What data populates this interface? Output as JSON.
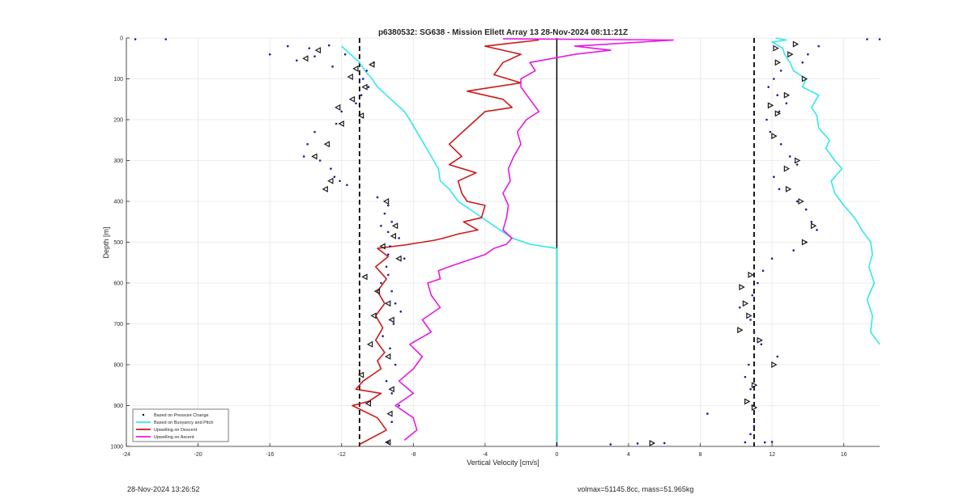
{
  "chart_data": {
    "type": "line",
    "title": "p6380532: SG638 - Mission Ellett Array 13 28-Nov-2024 08:11:21Z",
    "xlabel": "Vertical Velocity [cm/s]",
    "ylabel": "Depth [m]",
    "xlim": [
      -24,
      18
    ],
    "ylim": [
      0,
      1000
    ],
    "y_reversed": true,
    "grid": true,
    "xticks": [
      -24,
      -20,
      -16,
      -12,
      -8,
      -4,
      0,
      4,
      8,
      12,
      16
    ],
    "yticks": [
      0,
      100,
      200,
      300,
      400,
      500,
      600,
      700,
      800,
      900,
      1000
    ],
    "reference_lines": {
      "dashed_x": [
        -11,
        11
      ],
      "solid_x": [
        0
      ]
    },
    "legend": {
      "placement": "bottom-left",
      "entries": [
        {
          "label": "Based on Pressure Change",
          "color": "#000000",
          "style": "dot"
        },
        {
          "label": "Based on Buoyancy and Pitch",
          "color": "#33e8e8",
          "style": "line"
        },
        {
          "label": "Upwelling on Descent",
          "color": "#cc1a1a",
          "style": "line"
        },
        {
          "label": "Upwelling on Ascent",
          "color": "#e619e6",
          "style": "line"
        }
      ]
    },
    "series": [
      {
        "name": "Based on Buoyancy and Pitch",
        "role": "descent",
        "color": "#33e8e8",
        "x": [
          -12,
          -11.5,
          -11,
          -10.7,
          -10.3,
          -10,
          -9.5,
          -9,
          -8.5,
          -8.2,
          -7.8,
          -7.4,
          -7,
          -6.6,
          -6.5,
          -6,
          -5.5,
          -4.5,
          -3.5,
          -2.5,
          -1.5,
          -0.5,
          0,
          0,
          0
        ],
        "y": [
          20,
          40,
          60,
          80,
          100,
          120,
          140,
          160,
          180,
          200,
          230,
          260,
          290,
          320,
          350,
          370,
          400,
          430,
          460,
          490,
          505,
          512,
          515,
          700,
          990
        ]
      },
      {
        "name": "Based on Buoyancy and Pitch",
        "role": "ascent",
        "color": "#33e8e8",
        "x": [
          18,
          17.5,
          17.6,
          17.3,
          17.7,
          17.4,
          17.6,
          17.5,
          17,
          16.6,
          16,
          15.5,
          15.3,
          15.9,
          15.5,
          15,
          15.2,
          14.6,
          14.5,
          14.2,
          14.6,
          13.7,
          13.9,
          13.2,
          13,
          12.7,
          12.6,
          12,
          12.8,
          12.2
        ],
        "y": [
          750,
          720,
          680,
          640,
          600,
          560,
          530,
          500,
          470,
          440,
          410,
          380,
          350,
          320,
          300,
          270,
          250,
          220,
          190,
          170,
          140,
          120,
          100,
          80,
          60,
          40,
          25,
          10,
          5,
          0
        ]
      },
      {
        "name": "Upwelling on Descent",
        "color": "#cc1a1a",
        "x": [
          -1,
          -4,
          -2,
          -3,
          -3.5,
          -2,
          -5,
          -3,
          -2.5,
          -4,
          -4.5,
          -5,
          -5.5,
          -6,
          -5.3,
          -6,
          -4.5,
          -5.5,
          -5.3,
          -5,
          -4,
          -4.2,
          -5.2,
          -4.4,
          -5.5,
          -6.3,
          -6.8,
          -7.5,
          -8.5,
          -10,
          -9.4,
          -10.1,
          -9.5,
          -10,
          -9.6,
          -10.1,
          -9.7,
          -10.1,
          -9.6,
          -10,
          -9.8,
          -10.3,
          -10.8,
          -11.2,
          -9.8,
          -10.5,
          -11.4,
          -10,
          -9.5,
          -11
        ],
        "y": [
          5,
          20,
          40,
          60,
          90,
          110,
          130,
          150,
          170,
          180,
          200,
          220,
          240,
          260,
          290,
          310,
          330,
          350,
          380,
          400,
          410,
          440,
          450,
          470,
          480,
          490,
          495,
          500,
          507,
          515,
          535,
          560,
          590,
          620,
          650,
          680,
          710,
          740,
          770,
          790,
          810,
          825,
          840,
          860,
          870,
          890,
          900,
          930,
          960,
          995
        ]
      },
      {
        "name": "Upwelling on Ascent",
        "color": "#e619e6",
        "x": [
          -8.5,
          -7.8,
          -8,
          -9,
          -8,
          -8.8,
          -8,
          -7.5,
          -8.2,
          -7,
          -7.5,
          -6.5,
          -7,
          -7.2,
          -6.5,
          -6.6,
          -6,
          -5,
          -4,
          -3.5,
          -2.8,
          -2.5,
          -3,
          -2.8,
          -2.7,
          -3,
          -2.6,
          -2.7,
          -2.4,
          -2,
          -2.2,
          -1.7,
          -1,
          -1.5,
          -2,
          -2,
          -1.2,
          -1.5,
          1,
          3,
          1,
          6.5,
          -3
        ],
        "y": [
          985,
          960,
          930,
          900,
          870,
          840,
          810,
          780,
          750,
          720,
          690,
          660,
          630,
          600,
          590,
          570,
          560,
          545,
          530,
          515,
          505,
          490,
          470,
          440,
          410,
          380,
          350,
          320,
          290,
          260,
          230,
          200,
          180,
          150,
          120,
          100,
          80,
          60,
          40,
          30,
          20,
          5,
          2
        ]
      },
      {
        "name": "Based on Pressure Change",
        "role": "descent",
        "color": "#1a1aa6",
        "x": [
          -23.5,
          -21.8,
          -16,
          -15,
          -14.5,
          -13.8,
          -13.5,
          -12.7,
          -12.5,
          -11.8,
          -10.6,
          -10.2,
          -10.8,
          -10.5,
          -10.9,
          -11.2,
          -12,
          -12.3,
          -13.5,
          -13.9,
          -14.1,
          -13.2,
          -12.6,
          -12.4,
          -12.1,
          -11.7,
          -10,
          -9.4,
          -9.6,
          -9.2,
          -9.8,
          -9.4,
          -8.8,
          -9.3,
          -9.4,
          -8.5,
          -9.5,
          -9.4,
          -9.8,
          -9.2,
          -9,
          -8.7,
          -9.1,
          -9.7,
          -9.3,
          -9,
          -9.5,
          -9.2,
          -8.8,
          -9.2,
          -9.4
        ],
        "y": [
          3,
          3,
          40,
          20,
          55,
          25,
          45,
          18,
          70,
          40,
          80,
          60,
          100,
          120,
          140,
          160,
          180,
          210,
          230,
          260,
          290,
          300,
          320,
          340,
          350,
          360,
          390,
          410,
          430,
          450,
          460,
          475,
          490,
          510,
          530,
          540,
          560,
          580,
          600,
          620,
          650,
          670,
          700,
          730,
          760,
          800,
          840,
          870,
          900,
          940,
          990
        ]
      },
      {
        "name": "Based on Pressure Change",
        "role": "ascent",
        "color": "#1a1aa6",
        "x": [
          18,
          17.3,
          14.6,
          14,
          13.7,
          12.5,
          12.1,
          11.8,
          12.3,
          12.8,
          12.4,
          11.7,
          11.9,
          12.5,
          13,
          13.4,
          12.1,
          12.4,
          13.4,
          13.9,
          14.2,
          14.5,
          13.9,
          13.2,
          12,
          11.5,
          11.2,
          10.9,
          10.2,
          10.8,
          11,
          11.4,
          12.3,
          10.7,
          10.5,
          10.8,
          11,
          10.9,
          8.4,
          11,
          10.8,
          10.5,
          3,
          4.5,
          6,
          11.6,
          12
        ],
        "y": [
          3,
          3,
          20,
          40,
          60,
          80,
          100,
          120,
          140,
          160,
          180,
          200,
          230,
          260,
          290,
          310,
          340,
          370,
          400,
          420,
          450,
          470,
          500,
          520,
          540,
          570,
          600,
          630,
          660,
          690,
          720,
          750,
          780,
          800,
          830,
          860,
          880,
          900,
          920,
          950,
          970,
          990,
          995,
          993,
          992,
          990,
          989
        ]
      }
    ],
    "markers": {
      "color": "#1a1a1a",
      "descent": [
        [
          -13.3,
          30
        ],
        [
          -14,
          50
        ],
        [
          -11.2,
          75
        ],
        [
          -10.3,
          65
        ],
        [
          -11.5,
          95
        ],
        [
          -10.7,
          120
        ],
        [
          -11.4,
          150
        ],
        [
          -12.2,
          170
        ],
        [
          -10.9,
          190
        ],
        [
          -12,
          210
        ],
        [
          -12.8,
          260
        ],
        [
          -13.5,
          290
        ],
        [
          -12.6,
          350
        ],
        [
          -12.9,
          370
        ],
        [
          -9.5,
          400
        ],
        [
          -9,
          460
        ],
        [
          -9.1,
          485
        ],
        [
          -9.7,
          510
        ],
        [
          -8.8,
          540
        ],
        [
          -10.7,
          585
        ],
        [
          -10,
          620
        ],
        [
          -9.4,
          650
        ],
        [
          -10.2,
          680
        ],
        [
          -9.2,
          690
        ],
        [
          -10.4,
          750
        ],
        [
          -9.4,
          780
        ],
        [
          -10.9,
          825
        ],
        [
          -9.2,
          860
        ],
        [
          -10.5,
          895
        ],
        [
          -9.3,
          920
        ],
        [
          -9.4,
          990
        ]
      ],
      "ascent": [
        [
          12.2,
          25
        ],
        [
          13.3,
          15
        ],
        [
          13,
          40
        ],
        [
          12.3,
          60
        ],
        [
          13.8,
          100
        ],
        [
          12.8,
          140
        ],
        [
          11.9,
          165
        ],
        [
          12.3,
          185
        ],
        [
          12.1,
          240
        ],
        [
          13.4,
          300
        ],
        [
          12.8,
          320
        ],
        [
          12.9,
          370
        ],
        [
          13.6,
          400
        ],
        [
          14.3,
          460
        ],
        [
          13.8,
          500
        ],
        [
          10.8,
          580
        ],
        [
          10.3,
          610
        ],
        [
          10.5,
          650
        ],
        [
          10.7,
          680
        ],
        [
          10.2,
          715
        ],
        [
          11.3,
          740
        ],
        [
          12.1,
          800
        ],
        [
          11,
          850
        ],
        [
          10.6,
          890
        ],
        [
          11,
          905
        ],
        [
          5.3,
          992
        ]
      ]
    }
  },
  "footer": {
    "timestamp": "28-Nov-2024 13:26:52",
    "stats": "volmax=51145.8cc, mass=51.965kg"
  }
}
